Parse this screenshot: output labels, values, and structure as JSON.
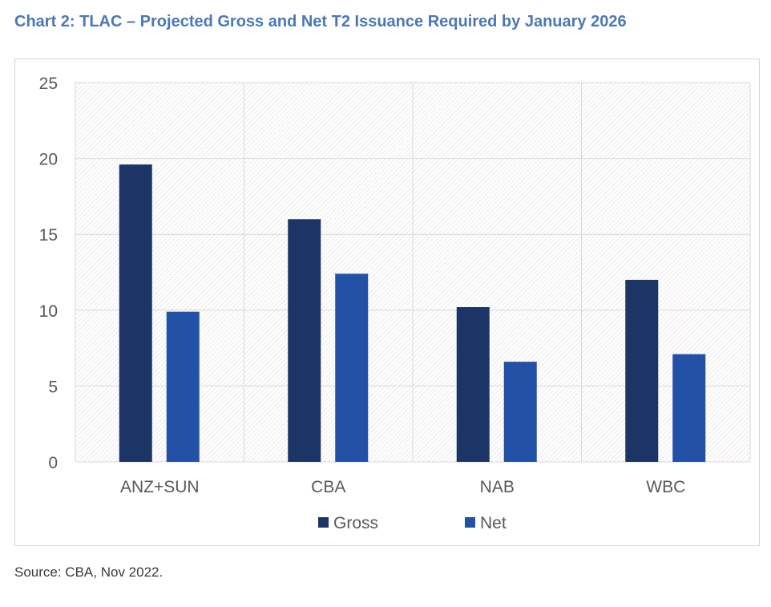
{
  "title": "Chart 2: TLAC – Projected Gross and Net T2 Issuance Required by January 2026",
  "source": "Source: CBA, Nov 2022.",
  "colors": {
    "title": "#4a78b8",
    "gross": "#1c3566",
    "net": "#2251a6"
  },
  "chart_data": {
    "type": "bar",
    "categories": [
      "ANZ+SUN",
      "CBA",
      "NAB",
      "WBC"
    ],
    "series": [
      {
        "name": "Gross",
        "values": [
          19.6,
          16.0,
          10.2,
          12.0
        ]
      },
      {
        "name": "Net",
        "values": [
          9.9,
          12.4,
          6.6,
          7.1
        ]
      }
    ],
    "ylim": [
      0,
      25
    ],
    "yticks": [
      0,
      5,
      10,
      15,
      20,
      25
    ],
    "grid": true,
    "legend_position": "bottom",
    "title": "",
    "xlabel": "",
    "ylabel": ""
  }
}
